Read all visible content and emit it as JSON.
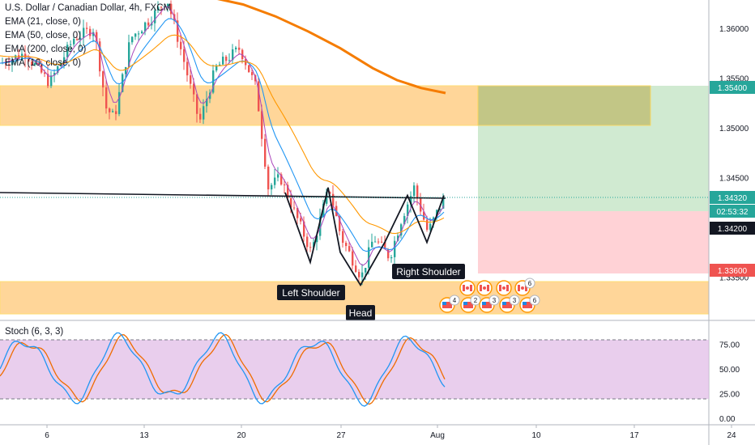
{
  "legend": {
    "title": "U.S. Dollar / Canadian Dollar, 4h, FXCM",
    "lines": [
      "EMA (21, close, 0)",
      "EMA (50, close, 0)",
      "EMA (200, close, 0)",
      "EMA (10, close, 0)"
    ]
  },
  "stoch_label": "Stoch (6, 3, 3)",
  "colors": {
    "supply_zone": "#ffcc80",
    "demand_zone": "#ffcc80",
    "target_zone": "#c8e6c9",
    "stop_zone": "#ffcdd2",
    "tag_green": "#26a69a",
    "tag_red": "#ef5350",
    "tag_dark": "#131722",
    "ema200": "#f57c00",
    "stoch_k": "#2196f3",
    "stoch_d": "#ef6c00",
    "stoch_band": "#e1bee7"
  },
  "price_axis": {
    "ticks": [
      "1.36000",
      "1.35500",
      "1.35000",
      "1.34500",
      "1.33500"
    ],
    "tags": {
      "target": "1.35400",
      "current": "1.34320",
      "countdown": "02:53:32",
      "entry": "1.34200",
      "stop": "1.33600"
    }
  },
  "stoch_axis": {
    "ticks": [
      "75.00",
      "50.00",
      "25.00",
      "0.00"
    ]
  },
  "time_axis": {
    "ticks": [
      "6",
      "13",
      "20",
      "27",
      "Aug",
      "10",
      "17",
      "24"
    ]
  },
  "annotations": {
    "left_shoulder": "Left Shoulder",
    "head": "Head",
    "right_shoulder": "Right Shoulder"
  },
  "events": {
    "top_row_badges": [
      "6"
    ],
    "bottom_row_badges": [
      "4",
      "2",
      "3",
      "3",
      "6"
    ]
  },
  "chart_data": {
    "type": "line",
    "title": "U.S. Dollar / Canadian Dollar, 4h, FXCM",
    "xlabel": "",
    "ylabel": "",
    "ylim": [
      1.33,
      1.364
    ],
    "x_ticks": [
      "6",
      "13",
      "20",
      "27",
      "Aug",
      "10",
      "17",
      "24"
    ],
    "neckline": [
      [
        0,
        1.345
      ],
      [
        550,
        1.3434
      ]
    ],
    "pattern": {
      "points": [
        [
          352,
          1.3435
        ],
        [
          383,
          1.3365
        ],
        [
          405,
          1.344
        ],
        [
          420,
          1.3375
        ],
        [
          445,
          1.3342
        ],
        [
          475,
          1.3385
        ],
        [
          503,
          1.3432
        ],
        [
          527,
          1.3385
        ],
        [
          548,
          1.3432
        ]
      ]
    },
    "zones": [
      {
        "name": "supply",
        "from": 1.3505,
        "to": 1.3555
      },
      {
        "name": "demand",
        "from": 1.3315,
        "to": 1.3355
      }
    ],
    "position": {
      "entry": 1.342,
      "target": 1.354,
      "stop": 1.336,
      "current": 1.3432
    },
    "stoch": {
      "levels": [
        20,
        80
      ],
      "ylim": [
        0,
        100
      ]
    }
  }
}
